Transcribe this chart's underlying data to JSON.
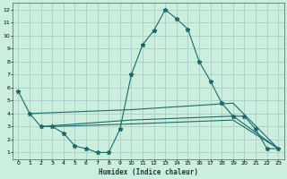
{
  "xlabel": "Humidex (Indice chaleur)",
  "bg_color": "#cceedd",
  "grid_color": "#aacccc",
  "line_color": "#1a6b6b",
  "xlim": [
    -0.5,
    23.5
  ],
  "ylim": [
    0.5,
    12.5
  ],
  "xticks": [
    0,
    1,
    2,
    3,
    4,
    5,
    6,
    7,
    8,
    9,
    10,
    11,
    12,
    13,
    14,
    15,
    16,
    17,
    18,
    19,
    20,
    21,
    22,
    23
  ],
  "yticks": [
    1,
    2,
    3,
    4,
    5,
    6,
    7,
    8,
    9,
    10,
    11,
    12
  ],
  "main_line": {
    "x": [
      0,
      1,
      2,
      3,
      4,
      5,
      6,
      7,
      8,
      9,
      10,
      11,
      12,
      13,
      14,
      15,
      16,
      17,
      18,
      19,
      20,
      21,
      22,
      23
    ],
    "y": [
      5.7,
      4.0,
      3.0,
      3.0,
      2.5,
      1.5,
      1.3,
      1.0,
      1.0,
      2.8,
      7.0,
      9.3,
      10.4,
      12.0,
      11.3,
      10.5,
      8.0,
      6.5,
      4.8,
      3.8,
      3.8,
      2.8,
      1.3,
      1.3
    ]
  },
  "flat_lines": [
    {
      "x": [
        1,
        10,
        19,
        23
      ],
      "y": [
        4.0,
        4.3,
        4.8,
        1.3
      ]
    },
    {
      "x": [
        2,
        10,
        19,
        23
      ],
      "y": [
        3.0,
        3.5,
        3.8,
        1.3
      ]
    },
    {
      "x": [
        3,
        10,
        19,
        23
      ],
      "y": [
        3.0,
        3.2,
        3.5,
        1.3
      ]
    }
  ]
}
